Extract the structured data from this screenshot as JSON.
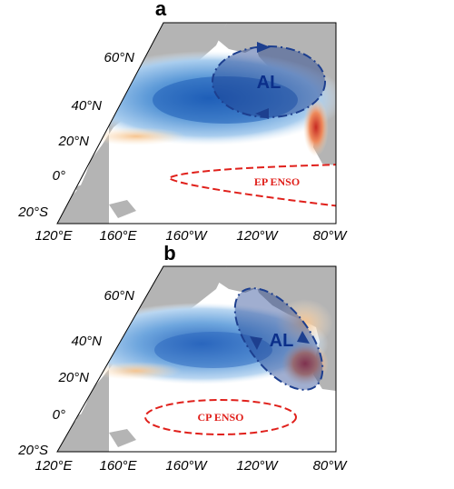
{
  "panels": [
    {
      "letter": "a",
      "lat_labels": [
        "60°N",
        "40°N",
        "20°N",
        "0°",
        "20°S"
      ],
      "lon_labels": [
        "120°E",
        "160°E",
        "160°W",
        "120°W",
        "80°W"
      ],
      "circulation_label": "AL",
      "enso_label": "EP ENSO"
    },
    {
      "letter": "b",
      "lat_labels": [
        "60°N",
        "40°N",
        "20°N",
        "0°",
        "20°S"
      ],
      "lon_labels": [
        "120°E",
        "160°E",
        "160°W",
        "120°W",
        "80°W"
      ],
      "circulation_label": "AL",
      "enso_label": "CP ENSO"
    }
  ],
  "colors": {
    "land": "#b4b4b4",
    "cool_anomaly": "#2b6fc4",
    "warm_anomaly": "#d9412b",
    "al_fill": "#1d3f8f",
    "enso_outline": "#e0201b"
  }
}
